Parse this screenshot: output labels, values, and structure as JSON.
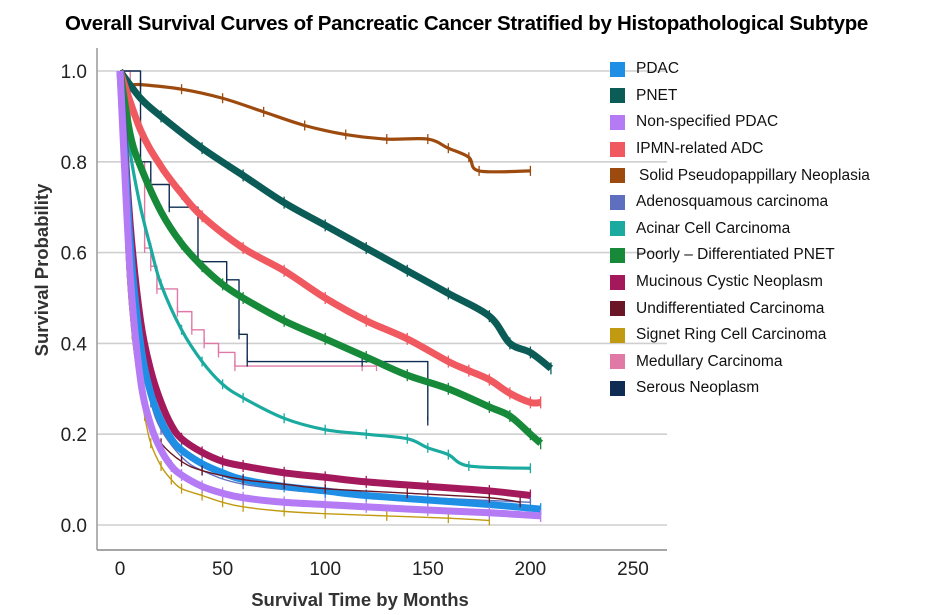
{
  "chart_data": {
    "type": "line",
    "subtype": "kaplan-meier",
    "title": "Overall Survival Curves of Pancreatic Cancer Stratified by Histopathological Subtype",
    "xlabel": "Survival Time by Months",
    "ylabel": "Survival Probability",
    "xlim": [
      0,
      260
    ],
    "ylim": [
      0,
      1.0
    ],
    "x_ticks": [
      "0",
      "50",
      "100",
      "150",
      "200",
      "250"
    ],
    "x_tick_values": [
      0,
      50,
      100,
      150,
      200,
      250
    ],
    "y_ticks": [
      "0.0",
      "0.2",
      "0.4",
      "0.6",
      "0.8",
      "1.0"
    ],
    "y_tick_values": [
      0.0,
      0.2,
      0.4,
      0.6,
      0.8,
      1.0
    ],
    "grid": "horizontal",
    "legend_position": "right",
    "series": [
      {
        "name": "PDAC",
        "color": "#1f8fe5",
        "weight": "heavy",
        "x": [
          0,
          5,
          10,
          15,
          20,
          25,
          30,
          40,
          50,
          60,
          80,
          100,
          120,
          150,
          180,
          205
        ],
        "y": [
          1.0,
          0.62,
          0.4,
          0.29,
          0.23,
          0.19,
          0.165,
          0.135,
          0.115,
          0.1,
          0.085,
          0.075,
          0.065,
          0.055,
          0.045,
          0.035
        ]
      },
      {
        "name": "PNET",
        "color": "#0b5c57",
        "weight": "heavy",
        "x": [
          0,
          10,
          20,
          40,
          60,
          80,
          100,
          120,
          140,
          160,
          180,
          190,
          200,
          210
        ],
        "y": [
          1.0,
          0.94,
          0.9,
          0.83,
          0.77,
          0.71,
          0.66,
          0.61,
          0.56,
          0.51,
          0.46,
          0.4,
          0.38,
          0.345
        ]
      },
      {
        "name": "Non-specified PDAC",
        "color": "#b57bf5",
        "weight": "heavy",
        "x": [
          0,
          5,
          10,
          15,
          20,
          25,
          30,
          40,
          50,
          60,
          80,
          100,
          120,
          150,
          180,
          205
        ],
        "y": [
          1.0,
          0.55,
          0.32,
          0.22,
          0.165,
          0.13,
          0.11,
          0.085,
          0.07,
          0.06,
          0.05,
          0.045,
          0.04,
          0.033,
          0.027,
          0.02
        ]
      },
      {
        "name": "IPMN-related ADC",
        "color": "#f0595f",
        "weight": "heavy",
        "x": [
          0,
          10,
          20,
          30,
          40,
          60,
          80,
          100,
          120,
          140,
          160,
          170,
          180,
          190,
          200,
          205
        ],
        "y": [
          1.0,
          0.87,
          0.79,
          0.73,
          0.68,
          0.61,
          0.56,
          0.5,
          0.45,
          0.41,
          0.36,
          0.34,
          0.32,
          0.29,
          0.27,
          0.27
        ]
      },
      {
        "name": "Solid Pseudopappillary Neoplasia",
        "color": "#9c4a0e",
        "weight": "medium",
        "x": [
          0,
          3,
          10,
          30,
          50,
          70,
          90,
          110,
          130,
          150,
          160,
          170,
          175,
          200
        ],
        "y": [
          1.0,
          0.97,
          0.97,
          0.96,
          0.94,
          0.91,
          0.88,
          0.86,
          0.85,
          0.85,
          0.83,
          0.81,
          0.78,
          0.78
        ]
      },
      {
        "name": "Adenosquamous carcinoma",
        "color": "#5e6fbf",
        "weight": "thin",
        "x": [
          0,
          5,
          10,
          15,
          20,
          30,
          40,
          60,
          100,
          150,
          200
        ],
        "y": [
          1.0,
          0.6,
          0.37,
          0.27,
          0.21,
          0.15,
          0.12,
          0.09,
          0.07,
          0.06,
          0.05
        ]
      },
      {
        "name": "Acinar Cell Carcinoma",
        "color": "#1aaaa0",
        "weight": "medium",
        "x": [
          0,
          5,
          10,
          15,
          20,
          30,
          40,
          50,
          60,
          80,
          100,
          120,
          140,
          150,
          160,
          170,
          200
        ],
        "y": [
          1.0,
          0.82,
          0.7,
          0.61,
          0.53,
          0.43,
          0.36,
          0.31,
          0.28,
          0.235,
          0.21,
          0.2,
          0.19,
          0.17,
          0.155,
          0.13,
          0.125
        ]
      },
      {
        "name": "Poorly – Differentiated PNET",
        "color": "#178a3a",
        "weight": "heavy",
        "x": [
          0,
          5,
          10,
          20,
          30,
          40,
          50,
          60,
          80,
          100,
          120,
          140,
          160,
          180,
          190,
          200,
          205
        ],
        "y": [
          1.0,
          0.86,
          0.79,
          0.69,
          0.62,
          0.57,
          0.53,
          0.5,
          0.45,
          0.41,
          0.37,
          0.33,
          0.3,
          0.26,
          0.24,
          0.2,
          0.18
        ]
      },
      {
        "name": "Mucinous Cystic Neoplasm",
        "color": "#a3195b",
        "weight": "heavy",
        "x": [
          0,
          5,
          10,
          15,
          20,
          25,
          30,
          40,
          50,
          60,
          80,
          100,
          120,
          150,
          180,
          200
        ],
        "y": [
          1.0,
          0.66,
          0.45,
          0.34,
          0.27,
          0.22,
          0.19,
          0.16,
          0.14,
          0.13,
          0.115,
          0.105,
          0.095,
          0.085,
          0.075,
          0.065
        ]
      },
      {
        "name": "Undifferentiated Carcinoma",
        "color": "#6b1626",
        "weight": "thin",
        "x": [
          0,
          3,
          6,
          9,
          12,
          15,
          20,
          30,
          40,
          60,
          80,
          100,
          140,
          180,
          195
        ],
        "y": [
          1.0,
          0.6,
          0.42,
          0.32,
          0.26,
          0.22,
          0.18,
          0.14,
          0.12,
          0.1,
          0.09,
          0.08,
          0.07,
          0.06,
          0.05
        ]
      },
      {
        "name": "Signet Ring Cell Carcinoma",
        "color": "#c29a12",
        "weight": "thin",
        "x": [
          0,
          3,
          6,
          9,
          12,
          15,
          20,
          25,
          30,
          40,
          50,
          60,
          80,
          100,
          130,
          160,
          180
        ],
        "y": [
          1.0,
          0.6,
          0.42,
          0.32,
          0.24,
          0.18,
          0.13,
          0.1,
          0.08,
          0.065,
          0.05,
          0.04,
          0.03,
          0.025,
          0.02,
          0.015,
          0.01
        ]
      },
      {
        "name": "Medullary Carcinoma",
        "color": "#e079a5",
        "weight": "thin",
        "step": true,
        "x": [
          0,
          5,
          12,
          15,
          18,
          28,
          35,
          41,
          48,
          56,
          118,
          125
        ],
        "y": [
          1.0,
          0.8,
          0.61,
          0.57,
          0.52,
          0.47,
          0.43,
          0.4,
          0.38,
          0.35,
          0.35,
          0.35
        ]
      },
      {
        "name": "Serous Neoplasm",
        "color": "#0f2d52",
        "weight": "thin",
        "step": true,
        "x": [
          0,
          10,
          15,
          24,
          38,
          52,
          58,
          62,
          118,
          150
        ],
        "y": [
          1.0,
          0.8,
          0.75,
          0.7,
          0.58,
          0.54,
          0.42,
          0.36,
          0.36,
          0.23
        ]
      }
    ]
  }
}
